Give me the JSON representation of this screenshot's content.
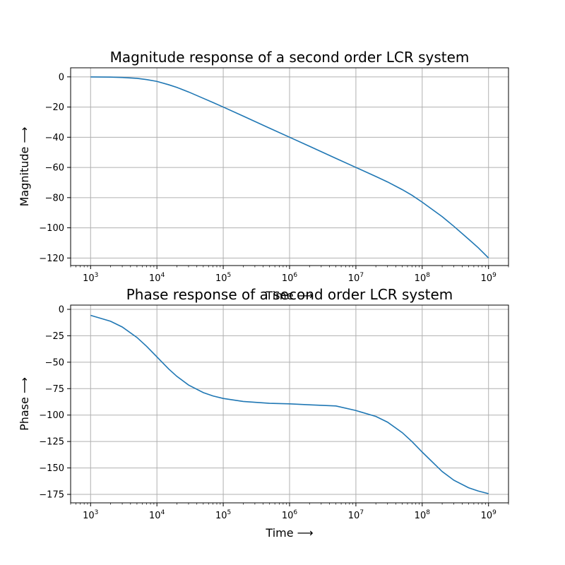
{
  "chart_data": [
    {
      "type": "line",
      "title": "Magnitude response of a second order LCR system",
      "xlabel": "Time ⟶",
      "ylabel": "Magnitude ⟶",
      "xscale": "log",
      "xlim": [
        500,
        2000000000
      ],
      "ylim": [
        -125,
        6
      ],
      "grid": true,
      "x_ticks": [
        {
          "base": "10",
          "exp": "3",
          "value": 1000
        },
        {
          "base": "10",
          "exp": "4",
          "value": 10000
        },
        {
          "base": "10",
          "exp": "5",
          "value": 100000
        },
        {
          "base": "10",
          "exp": "6",
          "value": 1000000
        },
        {
          "base": "10",
          "exp": "7",
          "value": 10000000
        },
        {
          "base": "10",
          "exp": "8",
          "value": 100000000
        },
        {
          "base": "10",
          "exp": "9",
          "value": 1000000000
        }
      ],
      "y_ticks": [
        0,
        -20,
        -40,
        -60,
        -80,
        -100,
        -120
      ],
      "series": [
        {
          "color": "#1f77b4",
          "x": [
            1000,
            2000,
            3000,
            5000,
            7000,
            10000,
            15000,
            20000,
            30000,
            50000,
            70000,
            100000,
            200000,
            500000,
            1000000,
            2000000,
            5000000,
            10000000,
            20000000,
            30000000,
            50000000,
            70000000,
            100000000,
            200000000,
            300000000,
            500000000,
            700000000,
            1000000000
          ],
          "y": [
            -0.04,
            -0.17,
            -0.4,
            -1.0,
            -1.8,
            -3.0,
            -5.2,
            -7.0,
            -10.0,
            -14.2,
            -17.0,
            -20.0,
            -26.0,
            -34.0,
            -40.0,
            -46.0,
            -54.0,
            -60.0,
            -66.0,
            -69.6,
            -74.7,
            -78.4,
            -83.0,
            -92.6,
            -99.0,
            -107.5,
            -113.2,
            -120.0
          ]
        }
      ]
    },
    {
      "type": "line",
      "title": "Phase response of a second order LCR system",
      "xlabel": "Time ⟶",
      "ylabel": "Phase ⟶",
      "xscale": "log",
      "xlim": [
        500,
        2000000000
      ],
      "ylim": [
        -183,
        4
      ],
      "grid": true,
      "x_ticks": [
        {
          "base": "10",
          "exp": "3",
          "value": 1000
        },
        {
          "base": "10",
          "exp": "4",
          "value": 10000
        },
        {
          "base": "10",
          "exp": "5",
          "value": 100000
        },
        {
          "base": "10",
          "exp": "6",
          "value": 1000000
        },
        {
          "base": "10",
          "exp": "7",
          "value": 10000000
        },
        {
          "base": "10",
          "exp": "8",
          "value": 100000000
        },
        {
          "base": "10",
          "exp": "9",
          "value": 1000000000
        }
      ],
      "y_ticks": [
        0,
        -25,
        -50,
        -75,
        -100,
        -125,
        -150,
        -175
      ],
      "series": [
        {
          "color": "#1f77b4",
          "x": [
            1000,
            2000,
            3000,
            5000,
            7000,
            10000,
            15000,
            20000,
            30000,
            50000,
            70000,
            100000,
            200000,
            500000,
            1000000,
            2000000,
            5000000,
            10000000,
            20000000,
            30000000,
            50000000,
            70000000,
            100000000,
            200000000,
            300000000,
            500000000,
            700000000,
            1000000000
          ],
          "y": [
            -5.7,
            -11.3,
            -16.7,
            -26.6,
            -35.0,
            -45.0,
            -56.3,
            -63.4,
            -71.6,
            -78.7,
            -81.9,
            -84.3,
            -87.1,
            -88.9,
            -89.4,
            -90.3,
            -91.4,
            -95.7,
            -101.3,
            -106.7,
            -116.6,
            -125.0,
            -135.0,
            -153.4,
            -161.6,
            -168.7,
            -171.8,
            -174.3
          ]
        }
      ]
    }
  ]
}
